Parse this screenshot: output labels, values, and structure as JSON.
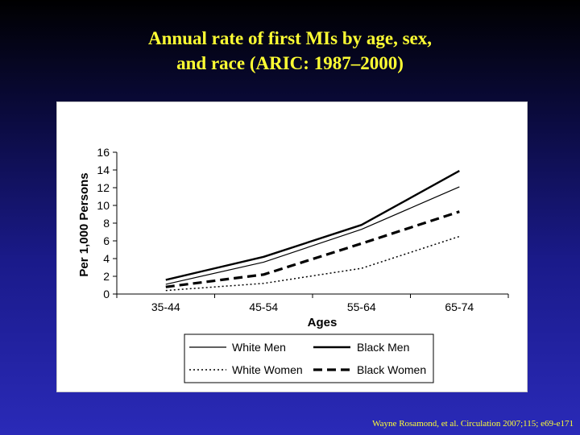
{
  "title": {
    "line1": "Annual rate of first MIs by age, sex,",
    "line2": "and race (ARIC: 1987–2000)"
  },
  "citation": "Wayne Rosamond, et al. Circulation  2007;115; e69-e171",
  "colors": {
    "title": "#ffff33",
    "line": "#000000",
    "panel": "#ffffff"
  },
  "chart_data": {
    "type": "line",
    "categories": [
      "35-44",
      "45-54",
      "55-64",
      "65-74"
    ],
    "xlabel": "Ages",
    "ylabel": "Per 1,000 Persons",
    "ylim": [
      0,
      16
    ],
    "yticks": [
      0,
      2,
      4,
      6,
      8,
      10,
      12,
      14,
      16
    ],
    "grid": false,
    "legend_position": "bottom",
    "series": [
      {
        "name": "White Men",
        "values": [
          1.1,
          3.6,
          7.3,
          12.1
        ],
        "style": "thin-solid"
      },
      {
        "name": "Black Men",
        "values": [
          1.6,
          4.2,
          7.8,
          13.9
        ],
        "style": "thick-solid"
      },
      {
        "name": "White Women",
        "values": [
          0.4,
          1.2,
          2.9,
          6.5
        ],
        "style": "dotted"
      },
      {
        "name": "Black Women",
        "values": [
          0.8,
          2.2,
          5.7,
          9.3
        ],
        "style": "dashed"
      }
    ]
  }
}
